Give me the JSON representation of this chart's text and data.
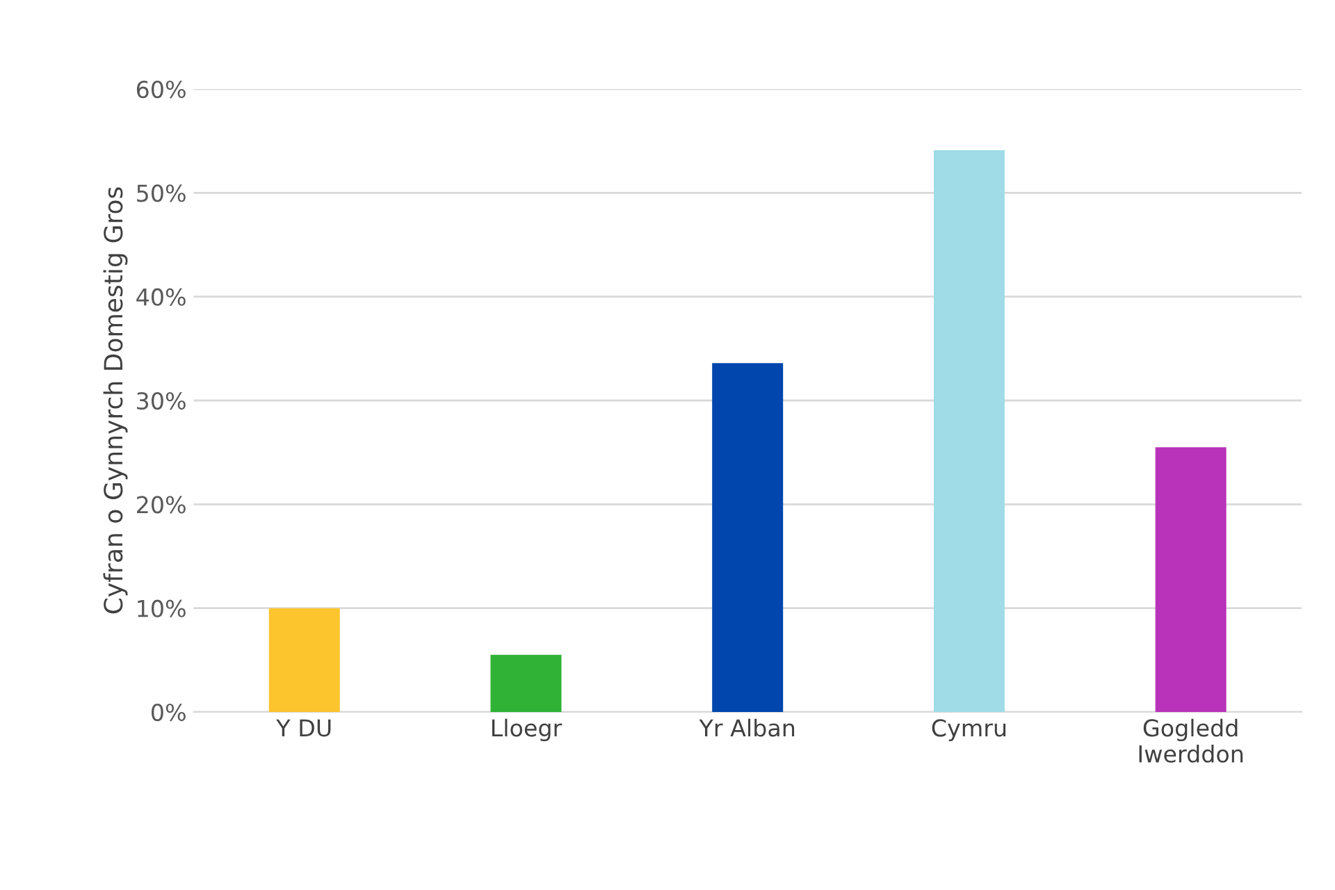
{
  "chart_data": {
    "type": "bar",
    "ylabel": "Cyfran o Gynnyrch Domestig Gros",
    "categories": [
      "Y DU",
      "Lloegr",
      "Yr Alban",
      "Cymru",
      "Gogledd\nIwerddon"
    ],
    "values": [
      10.0,
      5.5,
      33.6,
      54.1,
      25.5
    ],
    "colors": [
      "#fcc42d",
      "#2fb236",
      "#0046ad",
      "#a0dbe8",
      "#b833b9"
    ],
    "ylim": [
      0,
      60
    ],
    "yticks": [
      {
        "value": 0,
        "label": "0%"
      },
      {
        "value": 10,
        "label": "10%"
      },
      {
        "value": 20,
        "label": "20%"
      },
      {
        "value": 30,
        "label": "30%"
      },
      {
        "value": 40,
        "label": "40%"
      },
      {
        "value": 50,
        "label": "50%"
      },
      {
        "value": 60,
        "label": "60%"
      }
    ],
    "grid": "y",
    "legend": false
  }
}
